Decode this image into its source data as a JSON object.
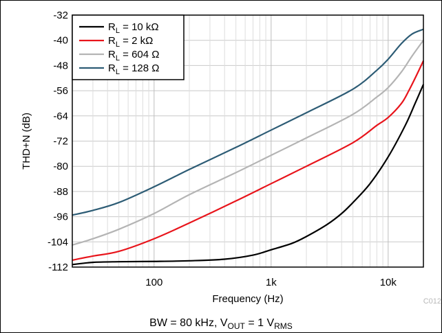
{
  "chart_data": {
    "type": "line",
    "xlabel": "Frequency (Hz)",
    "ylabel": "THD+N (dB)",
    "xscale": "log",
    "xlim": [
      20,
      20000
    ],
    "ylim": [
      -112,
      -32
    ],
    "yticks": [
      "-32",
      "-40",
      "-48",
      "-56",
      "-64",
      "-72",
      "-80",
      "-88",
      "-96",
      "-104",
      "-112"
    ],
    "xticks": [
      {
        "value": 100,
        "label": "100"
      },
      {
        "value": 1000,
        "label": "1k"
      },
      {
        "value": 10000,
        "label": "10k"
      }
    ],
    "grid": true,
    "legend_position": "top-left",
    "caption": {
      "pre": "BW = 80 kHz, V",
      "sub1": "OUT",
      "mid": " = 1 V",
      "sub2": "RMS"
    },
    "figure_code": "C012",
    "series": [
      {
        "name": {
          "pre": "R",
          "sub": "L",
          "post": " = 10 kΩ"
        },
        "color": "#000000",
        "points": [
          [
            20,
            -111.2
          ],
          [
            30,
            -110.5
          ],
          [
            50,
            -110.3
          ],
          [
            100,
            -110.2
          ],
          [
            200,
            -110
          ],
          [
            400,
            -109.5
          ],
          [
            700,
            -108.2
          ],
          [
            1000,
            -106.5
          ],
          [
            1500,
            -104.5
          ],
          [
            2000,
            -102.3
          ],
          [
            3000,
            -98.5
          ],
          [
            4000,
            -95
          ],
          [
            5000,
            -91.5
          ],
          [
            7000,
            -85.5
          ],
          [
            10000,
            -77
          ],
          [
            14000,
            -67
          ],
          [
            17000,
            -60
          ],
          [
            20000,
            -54
          ]
        ]
      },
      {
        "name": {
          "pre": "R",
          "sub": "L",
          "post": " = 2 kΩ"
        },
        "color": "#e8141b",
        "points": [
          [
            20,
            -109.8
          ],
          [
            30,
            -108.5
          ],
          [
            50,
            -107
          ],
          [
            100,
            -103
          ],
          [
            200,
            -98
          ],
          [
            500,
            -91
          ],
          [
            1000,
            -85.5
          ],
          [
            2000,
            -80
          ],
          [
            5000,
            -72.5
          ],
          [
            8000,
            -67
          ],
          [
            10000,
            -64.5
          ],
          [
            13000,
            -60
          ],
          [
            15000,
            -56
          ],
          [
            17000,
            -52
          ],
          [
            20000,
            -46.5
          ]
        ]
      },
      {
        "name": {
          "pre": "R",
          "sub": "L",
          "post": " = 604 Ω"
        },
        "color": "#b4b4b4",
        "points": [
          [
            20,
            -105
          ],
          [
            30,
            -103
          ],
          [
            50,
            -100
          ],
          [
            100,
            -95
          ],
          [
            200,
            -89
          ],
          [
            500,
            -82
          ],
          [
            1000,
            -76.5
          ],
          [
            2000,
            -71
          ],
          [
            5000,
            -63.5
          ],
          [
            8000,
            -58
          ],
          [
            10000,
            -55
          ],
          [
            13000,
            -50
          ],
          [
            16000,
            -45
          ],
          [
            20000,
            -40
          ]
        ]
      },
      {
        "name": {
          "pre": "R",
          "sub": "L",
          "post": " = 128 Ω"
        },
        "color": "#2d5c75",
        "points": [
          [
            20,
            -95.5
          ],
          [
            30,
            -94
          ],
          [
            50,
            -91.5
          ],
          [
            100,
            -86.5
          ],
          [
            200,
            -81
          ],
          [
            500,
            -74
          ],
          [
            1000,
            -68.5
          ],
          [
            2000,
            -63
          ],
          [
            5000,
            -55.5
          ],
          [
            8000,
            -49.5
          ],
          [
            10000,
            -46
          ],
          [
            13000,
            -41
          ],
          [
            16000,
            -38
          ],
          [
            20000,
            -36.5
          ]
        ]
      }
    ]
  }
}
